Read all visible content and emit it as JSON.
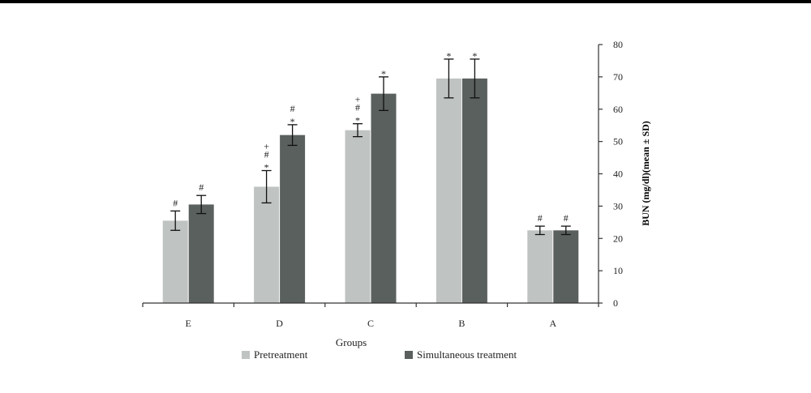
{
  "chart_data": {
    "type": "bar",
    "title": "",
    "xlabel": "Groups",
    "ylabel": "BUN (mg/dl)(mean ± SD)",
    "categories": [
      "E",
      "D",
      "C",
      "B",
      "A"
    ],
    "ylim": [
      0,
      80
    ],
    "yticks": [
      0,
      10,
      20,
      30,
      40,
      50,
      60,
      70,
      80
    ],
    "y_axis_side": "right",
    "grid": false,
    "legend_position": "bottom",
    "series": [
      {
        "name": "Pretreatment",
        "color": "#bfc3c1",
        "values": [
          25.5,
          36,
          53.5,
          69.5,
          22.5
        ],
        "errors": [
          3,
          5,
          2,
          6,
          1.3
        ],
        "markers": [
          [
            "#"
          ],
          [
            "*",
            "#",
            "+"
          ],
          [
            "*",
            "#",
            "+"
          ],
          [
            "*"
          ],
          [
            "#"
          ]
        ]
      },
      {
        "name": "Simultaneous treatment",
        "color": "#5a605e",
        "values": [
          30.5,
          52,
          64.8,
          69.5,
          22.5
        ],
        "errors": [
          2.8,
          3.2,
          5.2,
          6,
          1.3
        ],
        "markers": [
          [
            "#"
          ],
          [
            "*",
            "#"
          ],
          [
            "*"
          ],
          [
            "*"
          ],
          [
            "#"
          ]
        ]
      }
    ]
  }
}
